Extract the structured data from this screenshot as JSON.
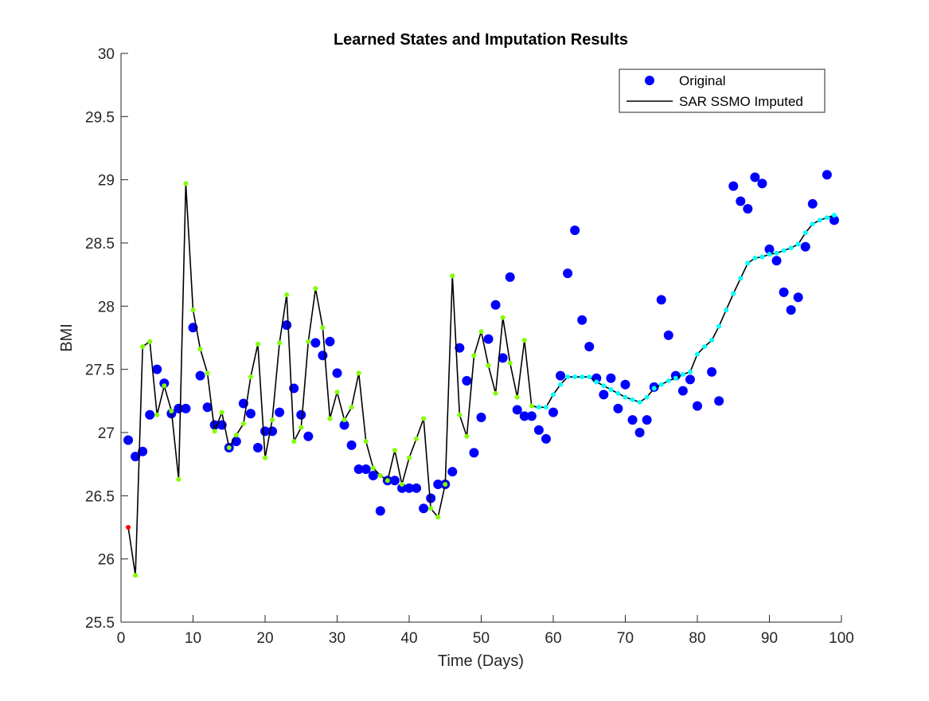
{
  "chart_data": {
    "type": "line",
    "title": "Learned States and Imputation Results",
    "xlabel": "Time (Days)",
    "ylabel": "BMI",
    "xlim": [
      0,
      100
    ],
    "ylim": [
      25.5,
      30
    ],
    "xticks": [
      0,
      10,
      20,
      30,
      40,
      50,
      60,
      70,
      80,
      90,
      100
    ],
    "yticks": [
      25.5,
      26,
      26.5,
      27,
      27.5,
      28,
      28.5,
      29,
      29.5,
      30
    ],
    "grid": false,
    "legend_position": "top-right",
    "legend": [
      {
        "label": "Original",
        "style": "marker",
        "color": "#0000ff"
      },
      {
        "label": "SAR SSMO Imputed",
        "style": "line",
        "color": "#000000"
      }
    ],
    "series": [
      {
        "name": "Original",
        "style": "markers",
        "color": "#0000ff",
        "x": [
          1,
          2,
          3,
          4,
          5,
          6,
          7,
          8,
          9,
          10,
          11,
          12,
          13,
          14,
          15,
          16,
          17,
          18,
          19,
          20,
          21,
          22,
          23,
          24,
          25,
          26,
          27,
          28,
          29,
          30,
          31,
          32,
          33,
          34,
          35,
          36,
          37,
          38,
          39,
          40,
          41,
          42,
          43,
          44,
          45,
          46,
          47,
          48,
          49,
          50,
          51,
          52,
          53,
          54,
          55,
          56,
          57,
          58,
          59,
          60,
          61,
          62,
          63,
          64,
          65,
          66,
          67,
          68,
          69,
          70,
          71,
          72,
          73,
          74,
          75,
          76,
          77,
          78,
          79,
          80,
          82,
          83,
          85,
          86,
          87,
          88,
          89,
          90,
          91,
          92,
          93,
          94,
          95,
          96,
          98,
          99
        ],
        "y": [
          26.94,
          26.81,
          26.85,
          27.14,
          27.5,
          27.39,
          27.15,
          27.19,
          27.19,
          27.83,
          27.45,
          27.2,
          27.06,
          27.06,
          26.88,
          26.93,
          27.23,
          27.15,
          26.88,
          27.01,
          27.01,
          27.16,
          27.85,
          27.35,
          27.14,
          26.97,
          27.71,
          27.61,
          27.72,
          27.47,
          27.06,
          26.9,
          26.71,
          26.71,
          26.66,
          26.38,
          26.62,
          26.62,
          26.56,
          26.56,
          26.56,
          26.4,
          26.48,
          26.59,
          26.59,
          26.69,
          27.67,
          27.41,
          26.84,
          27.12,
          27.74,
          28.01,
          27.59,
          28.23,
          27.18,
          27.13,
          27.13,
          27.02,
          26.95,
          27.16,
          27.45,
          28.26,
          28.6,
          27.89,
          27.68,
          27.43,
          27.3,
          27.43,
          27.19,
          27.38,
          27.1,
          27.0,
          27.1,
          27.36,
          28.05,
          27.77,
          27.45,
          27.33,
          27.42,
          27.21,
          27.48,
          27.25,
          28.95,
          28.83,
          28.77,
          29.02,
          28.97,
          28.45,
          28.36,
          28.11,
          27.97,
          28.07,
          28.47,
          28.81,
          29.04,
          28.68
        ]
      },
      {
        "name": "SAR SSMO Imputed",
        "style": "line",
        "color": "#000000",
        "x": [
          1,
          2,
          3,
          4,
          5,
          6,
          7,
          8,
          9,
          10,
          11,
          12,
          13,
          14,
          15,
          16,
          17,
          18,
          19,
          20,
          21,
          22,
          23,
          24,
          25,
          26,
          27,
          28,
          29,
          30,
          31,
          32,
          33,
          34,
          35,
          36,
          37,
          38,
          39,
          40,
          41,
          42,
          43,
          44,
          45,
          46,
          47,
          48,
          49,
          50,
          51,
          52,
          53,
          54,
          55,
          56,
          57,
          58,
          59,
          60,
          61,
          62,
          63,
          64,
          65,
          66,
          67,
          68,
          69,
          70,
          71,
          72,
          73,
          74,
          75,
          76,
          77,
          78,
          79,
          80,
          81,
          82,
          83,
          84,
          85,
          86,
          87,
          88,
          89,
          90,
          91,
          92,
          93,
          94,
          95,
          96,
          97,
          98,
          99
        ],
        "y": [
          26.25,
          25.87,
          27.68,
          27.72,
          27.14,
          27.37,
          27.17,
          26.63,
          28.97,
          27.97,
          27.66,
          27.47,
          27.01,
          27.16,
          26.88,
          26.98,
          27.07,
          27.44,
          27.7,
          26.8,
          27.1,
          27.71,
          28.09,
          26.93,
          27.04,
          27.72,
          28.14,
          27.83,
          27.11,
          27.32,
          27.1,
          27.2,
          27.47,
          26.93,
          26.72,
          26.66,
          26.62,
          26.86,
          26.59,
          26.8,
          26.95,
          27.11,
          26.4,
          26.33,
          26.59,
          28.24,
          27.14,
          26.97,
          27.61,
          27.8,
          27.53,
          27.31,
          27.91,
          27.55,
          27.28,
          27.73,
          27.21,
          27.2,
          27.2,
          27.3,
          27.38,
          27.44,
          27.44,
          27.44,
          27.44,
          27.4,
          27.37,
          27.34,
          27.31,
          27.28,
          27.26,
          27.24,
          27.28,
          27.35,
          27.38,
          27.41,
          27.43,
          27.46,
          27.48,
          27.62,
          27.68,
          27.73,
          27.84,
          27.97,
          28.1,
          28.22,
          28.34,
          28.38,
          28.39,
          28.41,
          28.42,
          28.44,
          28.46,
          28.49,
          28.58,
          28.65,
          28.68,
          28.7,
          28.72
        ]
      },
      {
        "name": "",
        "style": "small-markers",
        "color": "#7fff00",
        "x": [
          2,
          3,
          4,
          5,
          6,
          7,
          8,
          9,
          10,
          11,
          12,
          13,
          14,
          15,
          16,
          17,
          18,
          19,
          20,
          21,
          22,
          23,
          24,
          25,
          26,
          27,
          28,
          29,
          30,
          31,
          32,
          33,
          34,
          35,
          36,
          37,
          38,
          39,
          40,
          41,
          42,
          43,
          44,
          45,
          46,
          47,
          48,
          49,
          50,
          51,
          52,
          53,
          54,
          55,
          56,
          57
        ],
        "y": [
          25.87,
          27.68,
          27.72,
          27.14,
          27.37,
          27.17,
          26.63,
          28.97,
          27.97,
          27.66,
          27.47,
          27.01,
          27.16,
          26.88,
          26.98,
          27.07,
          27.44,
          27.7,
          26.8,
          27.1,
          27.71,
          28.09,
          26.93,
          27.04,
          27.72,
          28.14,
          27.83,
          27.11,
          27.32,
          27.1,
          27.2,
          27.47,
          26.93,
          26.72,
          26.66,
          26.62,
          26.86,
          26.59,
          26.8,
          26.95,
          27.11,
          26.4,
          26.33,
          26.59,
          28.24,
          27.14,
          26.97,
          27.61,
          27.8,
          27.53,
          27.31,
          27.91,
          27.55,
          27.28,
          27.73,
          27.21
        ]
      },
      {
        "name": "",
        "style": "small-markers",
        "color": "#00ffff",
        "x": [
          58,
          59,
          60,
          61,
          62,
          63,
          64,
          65,
          66,
          67,
          68,
          69,
          70,
          71,
          72,
          73,
          74,
          75,
          76,
          77,
          78,
          79,
          80,
          81,
          82,
          83,
          84,
          85,
          86,
          87,
          88,
          89,
          90,
          91,
          92,
          93,
          94,
          95,
          96,
          97,
          98,
          99
        ],
        "y": [
          27.2,
          27.2,
          27.3,
          27.38,
          27.44,
          27.44,
          27.44,
          27.44,
          27.4,
          27.37,
          27.34,
          27.31,
          27.28,
          27.26,
          27.24,
          27.28,
          27.35,
          27.38,
          27.41,
          27.43,
          27.46,
          27.48,
          27.62,
          27.68,
          27.73,
          27.84,
          27.97,
          28.1,
          28.22,
          28.34,
          28.38,
          28.39,
          28.41,
          28.42,
          28.44,
          28.46,
          28.49,
          28.58,
          28.65,
          28.68,
          28.7,
          28.72
        ]
      },
      {
        "name": "",
        "style": "small-markers",
        "color": "#ff0000",
        "x": [
          1
        ],
        "y": [
          26.25
        ]
      }
    ]
  }
}
